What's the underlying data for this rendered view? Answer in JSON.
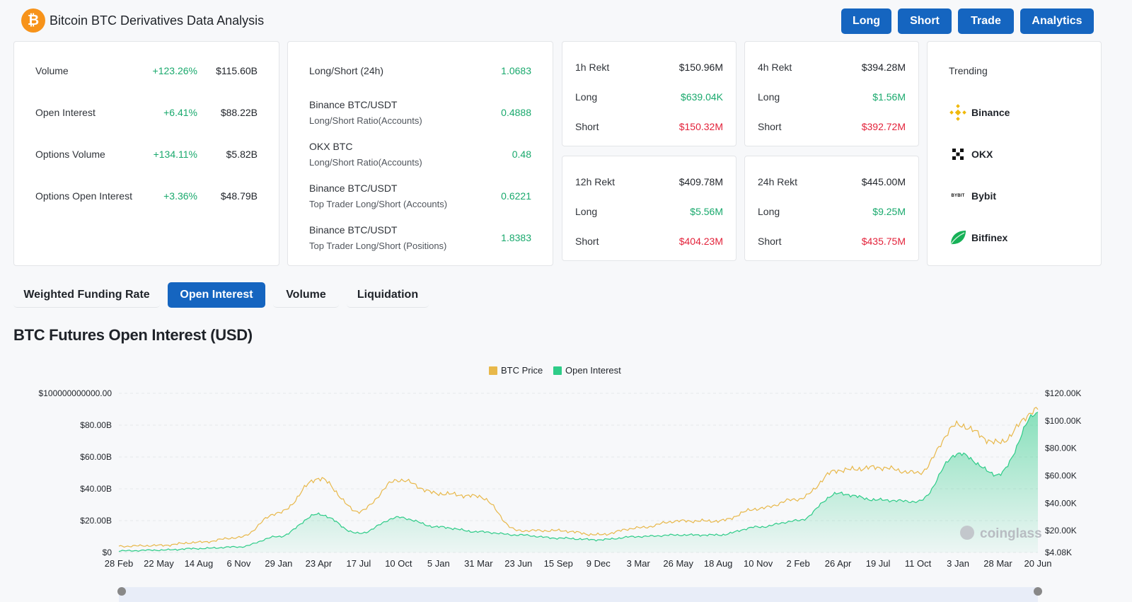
{
  "header": {
    "logo_symbol": "₿",
    "title": "Bitcoin BTC Derivatives Data Analysis",
    "nav": [
      "Long",
      "Short",
      "Trade",
      "Analytics"
    ]
  },
  "stats": [
    {
      "label": "Volume",
      "change": "+123.26%",
      "value": "$115.60B"
    },
    {
      "label": "Open Interest",
      "change": "+6.41%",
      "value": "$88.22B"
    },
    {
      "label": "Options Volume",
      "change": "+134.11%",
      "value": "$5.82B"
    },
    {
      "label": "Options Open Interest",
      "change": "+3.36%",
      "value": "$48.79B"
    }
  ],
  "ratios": [
    {
      "label": "Long/Short (24h)",
      "sub": "",
      "value": "1.0683"
    },
    {
      "label": "Binance BTC/USDT",
      "sub": "Long/Short Ratio(Accounts)",
      "value": "0.4888"
    },
    {
      "label": "OKX BTC",
      "sub": "Long/Short Ratio(Accounts)",
      "value": "0.48"
    },
    {
      "label": "Binance BTC/USDT",
      "sub": "Top Trader Long/Short (Accounts)",
      "value": "0.6221"
    },
    {
      "label": "Binance BTC/USDT",
      "sub": "Top Trader Long/Short (Positions)",
      "value": "1.8383"
    }
  ],
  "rekt": [
    {
      "title": "1h Rekt",
      "total": "$150.96M",
      "long_label": "Long",
      "long": "$639.04K",
      "short_label": "Short",
      "short": "$150.32M"
    },
    {
      "title": "4h Rekt",
      "total": "$394.28M",
      "long_label": "Long",
      "long": "$1.56M",
      "short_label": "Short",
      "short": "$392.72M"
    },
    {
      "title": "12h Rekt",
      "total": "$409.78M",
      "long_label": "Long",
      "long": "$5.56M",
      "short_label": "Short",
      "short": "$404.23M"
    },
    {
      "title": "24h Rekt",
      "total": "$445.00M",
      "long_label": "Long",
      "long": "$9.25M",
      "short_label": "Short",
      "short": "$435.75M"
    }
  ],
  "trending": {
    "title": "Trending",
    "items": [
      {
        "name": "Binance",
        "icon": "binance-icon"
      },
      {
        "name": "OKX",
        "icon": "okx-icon"
      },
      {
        "name": "Bybit",
        "icon": "bybit-icon",
        "icon_text": "BYBIT"
      },
      {
        "name": "Bitfinex",
        "icon": "bitfinex-icon"
      }
    ]
  },
  "tabs": [
    "Weighted Funding Rate",
    "Open Interest",
    "Volume",
    "Liquidation"
  ],
  "active_tab": "Open Interest",
  "chart_title": "BTC Futures Open Interest (USD)",
  "watermark": "coinglass",
  "colors": {
    "accent": "#1565c0",
    "positive": "#19a96d",
    "negative": "#e3223a",
    "btc_price": "#e8b84a",
    "open_interest": "#2ecc88"
  },
  "chart_data": {
    "type": "area",
    "legend": [
      "BTC Price",
      "Open Interest"
    ],
    "legend_placement": "top-center",
    "x_tick_labels": [
      "28 Feb",
      "22 May",
      "14 Aug",
      "6 Nov",
      "29 Jan",
      "23 Apr",
      "17 Jul",
      "10 Oct",
      "5 Jan",
      "31 Mar",
      "23 Jun",
      "15 Sep",
      "9 Dec",
      "3 Mar",
      "26 May",
      "18 Aug",
      "10 Nov",
      "2 Feb",
      "26 Apr",
      "19 Jul",
      "11 Oct",
      "3 Jan",
      "28 Mar",
      "20 Jun"
    ],
    "y_left_ticks": [
      "$0",
      "$20.00B",
      "$40.00B",
      "$60.00B",
      "$80.00B",
      "$100000000000.00"
    ],
    "y_left_range": [
      0,
      100000000000
    ],
    "y_right_ticks": [
      "$4.08K",
      "$20.00K",
      "$40.00K",
      "$60.00K",
      "$80.00K",
      "$100.00K",
      "$120.00K"
    ],
    "y_right_range": [
      4080,
      120000
    ],
    "series": [
      {
        "name": "BTC Price",
        "axis": "right",
        "values": [
          8600,
          9200,
          11500,
          15000,
          33000,
          58000,
          34000,
          57000,
          47000,
          45000,
          20000,
          20000,
          17000,
          22000,
          27000,
          27000,
          36000,
          43000,
          64000,
          66000,
          62000,
          97000,
          84000,
          108000
        ]
      },
      {
        "name": "Open Interest",
        "axis": "left",
        "values": [
          1000000000,
          1500000000,
          2500000000,
          3500000000,
          10000000000,
          24000000000,
          12000000000,
          22000000000,
          16000000000,
          13000000000,
          11000000000,
          9000000000,
          8000000000,
          10000000000,
          11000000000,
          11000000000,
          16000000000,
          20000000000,
          37000000000,
          33000000000,
          32000000000,
          62000000000,
          49000000000,
          88000000000
        ]
      }
    ]
  }
}
